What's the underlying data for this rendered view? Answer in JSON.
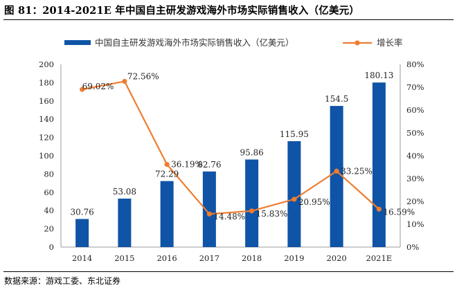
{
  "page": {
    "title": "图 81：2014-2021E 年中国自主研发游戏海外市场实际销售收入（亿美元）",
    "source": "数据来源：游戏工委、东北证券"
  },
  "chart_data": {
    "type": "bar+line",
    "categories": [
      "2014",
      "2015",
      "2016",
      "2017",
      "2018",
      "2019",
      "2020",
      "2021E"
    ],
    "series": [
      {
        "name": "中国自主研发游戏海外市场实际销售收入（亿美元）",
        "kind": "bar",
        "axis": "left",
        "color": "#0f54a6",
        "values": [
          30.76,
          53.08,
          72.29,
          82.76,
          95.86,
          115.95,
          154.5,
          180.13
        ],
        "labels": [
          "30.76",
          "53.08",
          "72.29",
          "82.76",
          "95.86",
          "115.95",
          "154.5",
          "180.13"
        ]
      },
      {
        "name": "增长率",
        "kind": "line",
        "axis": "right",
        "color": "#ee7d31",
        "values": [
          69.02,
          72.56,
          36.19,
          14.48,
          15.83,
          20.95,
          33.25,
          16.59
        ],
        "labels": [
          "69.02%",
          "72.56%",
          "36.19%",
          "14.48%",
          "15.83%",
          "20.95%",
          "33.25%",
          "16.59%"
        ]
      }
    ],
    "y_left": {
      "min": 0,
      "max": 200,
      "step": 20,
      "ticks": [
        "0",
        "20",
        "40",
        "60",
        "80",
        "100",
        "120",
        "140",
        "160",
        "180",
        "200"
      ]
    },
    "y_right": {
      "min": 0,
      "max": 80,
      "step": 10,
      "ticks": [
        "0%",
        "10%",
        "20%",
        "30%",
        "40%",
        "50%",
        "60%",
        "70%",
        "80%"
      ]
    },
    "legend_position": "top",
    "grid": false
  }
}
